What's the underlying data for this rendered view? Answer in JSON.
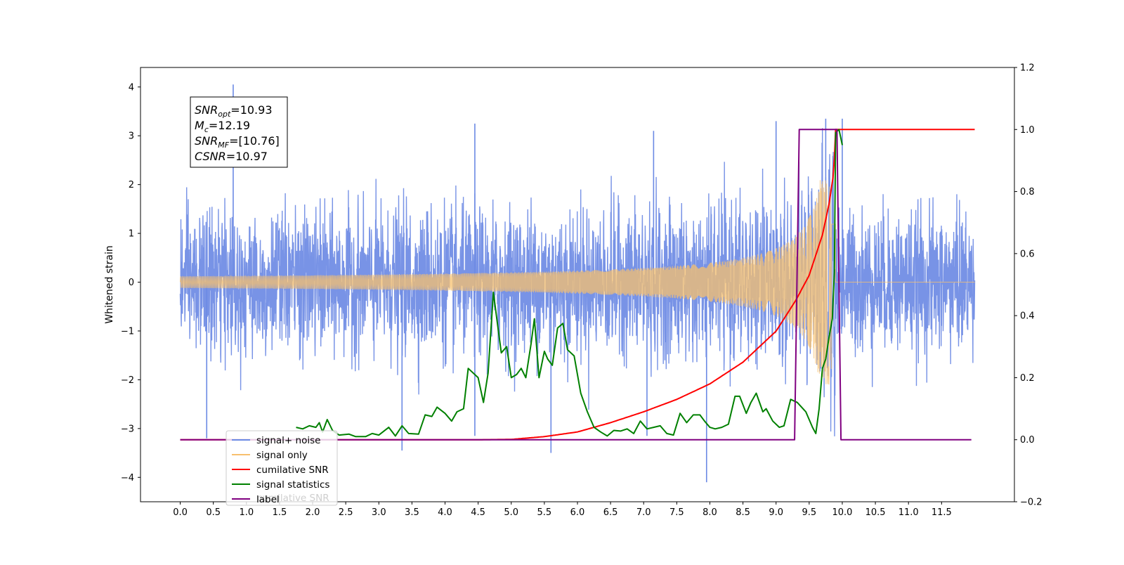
{
  "chart_data": {
    "type": "line",
    "ylabel": "Whitened strain",
    "xlim": [
      -0.6,
      12.6
    ],
    "ylim": [
      -4.5,
      4.4
    ],
    "y2lim": [
      -0.2,
      1.2
    ],
    "xticks": [
      "0.0",
      "0.5",
      "1.0",
      "1.5",
      "2.0",
      "2.5",
      "3.0",
      "3.5",
      "4.0",
      "4.5",
      "5.0",
      "5.5",
      "6.0",
      "6.5",
      "7.0",
      "7.5",
      "8.0",
      "8.5",
      "9.0",
      "9.5",
      "10.0",
      "10.5",
      "11.0",
      "11.5"
    ],
    "xtick_values": [
      0,
      0.5,
      1,
      1.5,
      2,
      2.5,
      3,
      3.5,
      4,
      4.5,
      5,
      5.5,
      6,
      6.5,
      7,
      7.5,
      8,
      8.5,
      9,
      9.5,
      10,
      10.5,
      11,
      11.5
    ],
    "yticks": [
      "4",
      "3",
      "2",
      "1",
      "0",
      "−1",
      "−2",
      "−3",
      "−4"
    ],
    "ytick_values": [
      4,
      3,
      2,
      1,
      0,
      -1,
      -2,
      -3,
      -4
    ],
    "y2ticks": [
      "1.2",
      "1.0",
      "0.8",
      "0.6",
      "0.4",
      "0.2",
      "0.0",
      "−0.2"
    ],
    "y2tick_values": [
      1.2,
      1.0,
      0.8,
      0.6,
      0.4,
      0.2,
      0.0,
      -0.2
    ],
    "annotation": {
      "lines": [
        {
          "sym": "SNR",
          "sub": "opt",
          "val": "=10.93"
        },
        {
          "sym": "M",
          "sub": "c",
          "val": "=12.19"
        },
        {
          "sym": "SNR",
          "sub": "MF",
          "val": "=[10.76]"
        },
        {
          "sym": "CSNR",
          "sub": "",
          "val": "=10.97"
        }
      ]
    },
    "legend": {
      "placement": "lower-left",
      "entries": [
        {
          "label": "signal+ noise",
          "color": "#6c8ae4"
        },
        {
          "label": "signal only",
          "color": "#f7c06e"
        },
        {
          "label": "cumilative SNR",
          "color": "#ff0000"
        },
        {
          "label": "signal statistics",
          "color": "#008000"
        },
        {
          "label": "label",
          "color": "#800080"
        }
      ],
      "ghost_text": "cumilative SNR"
    },
    "series": [
      {
        "name": "signal+ noise",
        "axis": "left",
        "color": "#6c8ae4",
        "x_range": [
          0.0,
          12.0
        ],
        "noise_sigma": 0.7,
        "spikes": [
          {
            "x": 0.8,
            "y": 4.05
          },
          {
            "x": 0.4,
            "y": -3.2
          },
          {
            "x": 3.35,
            "y": -3.45
          },
          {
            "x": 4.45,
            "y": 3.25
          },
          {
            "x": 4.45,
            "y": -3.15
          },
          {
            "x": 5.6,
            "y": -3.5
          },
          {
            "x": 7.15,
            "y": 3.1
          },
          {
            "x": 7.05,
            "y": -3.15
          },
          {
            "x": 7.95,
            "y": -4.1
          },
          {
            "x": 9.0,
            "y": 3.3
          },
          {
            "x": 9.75,
            "y": 3.35
          },
          {
            "x": 10.0,
            "y": 3.35
          }
        ]
      },
      {
        "name": "signal only",
        "axis": "left",
        "color": "#f7c06e",
        "x_range": [
          0.0,
          12.0
        ],
        "peak_x": 9.85,
        "peak_amplitude": 2.1,
        "end_x": 9.9
      },
      {
        "name": "cumilative SNR",
        "axis": "right",
        "color": "#ff0000",
        "points": [
          [
            0,
            0
          ],
          [
            4.5,
            0.0
          ],
          [
            5.0,
            0.001
          ],
          [
            5.5,
            0.01
          ],
          [
            6.0,
            0.025
          ],
          [
            6.5,
            0.055
          ],
          [
            7.0,
            0.09
          ],
          [
            7.5,
            0.13
          ],
          [
            8.0,
            0.18
          ],
          [
            8.5,
            0.25
          ],
          [
            9.0,
            0.35
          ],
          [
            9.3,
            0.45
          ],
          [
            9.5,
            0.53
          ],
          [
            9.7,
            0.66
          ],
          [
            9.8,
            0.76
          ],
          [
            9.87,
            0.86
          ],
          [
            9.9,
            1.0
          ],
          [
            12.0,
            1.0
          ]
        ]
      },
      {
        "name": "signal statistics",
        "axis": "right",
        "color": "#008000",
        "x_range": [
          1.75,
          9.88
        ],
        "points": [
          [
            1.75,
            0.04
          ],
          [
            1.85,
            0.035
          ],
          [
            1.95,
            0.045
          ],
          [
            2.05,
            0.04
          ],
          [
            2.1,
            0.055
          ],
          [
            2.15,
            0.025
          ],
          [
            2.22,
            0.065
          ],
          [
            2.3,
            0.03
          ],
          [
            2.4,
            0.015
          ],
          [
            2.55,
            0.018
          ],
          [
            2.65,
            0.01
          ],
          [
            2.8,
            0.01
          ],
          [
            2.9,
            0.02
          ],
          [
            3.0,
            0.015
          ],
          [
            3.15,
            0.04
          ],
          [
            3.25,
            0.012
          ],
          [
            3.35,
            0.045
          ],
          [
            3.45,
            0.02
          ],
          [
            3.6,
            0.018
          ],
          [
            3.7,
            0.08
          ],
          [
            3.8,
            0.075
          ],
          [
            3.88,
            0.105
          ],
          [
            4.0,
            0.085
          ],
          [
            4.1,
            0.06
          ],
          [
            4.18,
            0.09
          ],
          [
            4.28,
            0.1
          ],
          [
            4.35,
            0.23
          ],
          [
            4.5,
            0.2
          ],
          [
            4.58,
            0.12
          ],
          [
            4.65,
            0.215
          ],
          [
            4.73,
            0.475
          ],
          [
            4.8,
            0.36
          ],
          [
            4.85,
            0.28
          ],
          [
            4.93,
            0.3
          ],
          [
            5.0,
            0.2
          ],
          [
            5.08,
            0.21
          ],
          [
            5.15,
            0.23
          ],
          [
            5.22,
            0.2
          ],
          [
            5.3,
            0.31
          ],
          [
            5.35,
            0.39
          ],
          [
            5.42,
            0.2
          ],
          [
            5.5,
            0.285
          ],
          [
            5.55,
            0.26
          ],
          [
            5.62,
            0.24
          ],
          [
            5.7,
            0.36
          ],
          [
            5.78,
            0.375
          ],
          [
            5.85,
            0.29
          ],
          [
            5.95,
            0.27
          ],
          [
            6.05,
            0.15
          ],
          [
            6.15,
            0.09
          ],
          [
            6.25,
            0.04
          ],
          [
            6.35,
            0.025
          ],
          [
            6.45,
            0.012
          ],
          [
            6.55,
            0.03
          ],
          [
            6.65,
            0.028
          ],
          [
            6.75,
            0.035
          ],
          [
            6.85,
            0.02
          ],
          [
            6.95,
            0.06
          ],
          [
            7.05,
            0.035
          ],
          [
            7.15,
            0.04
          ],
          [
            7.25,
            0.045
          ],
          [
            7.35,
            0.02
          ],
          [
            7.45,
            0.015
          ],
          [
            7.55,
            0.085
          ],
          [
            7.65,
            0.055
          ],
          [
            7.75,
            0.08
          ],
          [
            7.85,
            0.08
          ],
          [
            7.92,
            0.06
          ],
          [
            8.0,
            0.04
          ],
          [
            8.08,
            0.035
          ],
          [
            8.18,
            0.04
          ],
          [
            8.28,
            0.05
          ],
          [
            8.38,
            0.14
          ],
          [
            8.45,
            0.14
          ],
          [
            8.55,
            0.085
          ],
          [
            8.62,
            0.12
          ],
          [
            8.7,
            0.15
          ],
          [
            8.8,
            0.09
          ],
          [
            8.85,
            0.1
          ],
          [
            8.95,
            0.06
          ],
          [
            9.05,
            0.04
          ],
          [
            9.12,
            0.045
          ],
          [
            9.22,
            0.13
          ],
          [
            9.32,
            0.12
          ],
          [
            9.45,
            0.09
          ],
          [
            9.55,
            0.04
          ],
          [
            9.6,
            0.02
          ],
          [
            9.65,
            0.1
          ],
          [
            9.7,
            0.23
          ],
          [
            9.75,
            0.26
          ],
          [
            9.8,
            0.33
          ],
          [
            9.85,
            0.39
          ],
          [
            9.88,
            0.54
          ]
        ]
      },
      {
        "name": "label",
        "axis": "right",
        "color": "#800080",
        "points": [
          [
            0,
            0
          ],
          [
            9.28,
            0
          ],
          [
            9.35,
            1.0
          ],
          [
            9.92,
            1.0
          ],
          [
            9.98,
            0
          ],
          [
            11.95,
            0
          ]
        ]
      }
    ]
  }
}
